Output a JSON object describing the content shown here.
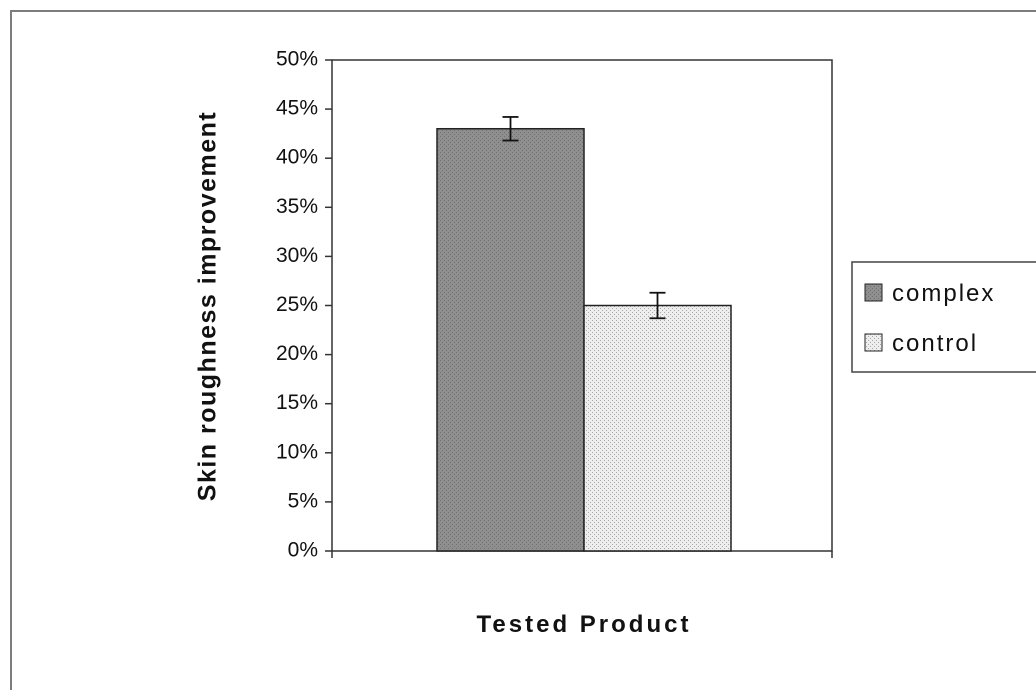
{
  "chart_data": {
    "type": "bar",
    "title": "",
    "xlabel": "Tested Product",
    "ylabel": "Skin roughness improvement",
    "categories": [
      ""
    ],
    "series": [
      {
        "name": "complex",
        "values": [
          0.43
        ],
        "error": [
          0.012
        ],
        "color": "#8f8f8f"
      },
      {
        "name": "control",
        "values": [
          0.25
        ],
        "error": [
          0.013
        ],
        "color": "#e6e6e6"
      }
    ],
    "ylim": [
      0,
      0.5
    ],
    "yticks": [
      0,
      0.05,
      0.1,
      0.15,
      0.2,
      0.25,
      0.3,
      0.35,
      0.4,
      0.45,
      0.5
    ],
    "ytick_labels": [
      "0%",
      "5%",
      "10%",
      "15%",
      "20%",
      "25%",
      "30%",
      "35%",
      "40%",
      "45%",
      "50%"
    ],
    "grid": false,
    "legend_position": "right"
  }
}
